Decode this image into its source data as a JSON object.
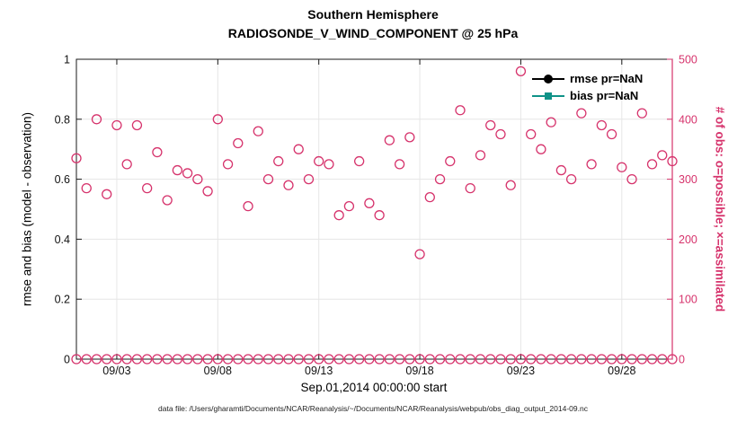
{
  "figure": {
    "title_line1": "Southern Hemisphere",
    "title_line2": "RADIOSONDE_V_WIND_COMPONENT @ 25 hPa",
    "x_label": "Sep.01,2014 00:00:00 start",
    "left_y_label": "rmse and bias (model - observation)",
    "right_y_label": "# of obs: o=possible; ×=assimilated",
    "footer": "data file: /Users/gharamti/Documents/NCAR/Reanalysis/~/Documents/NCAR/Reanalysis/webpub/obs_diag_output_2014-09.nc"
  },
  "legend": {
    "items": [
      {
        "label": "rmse pr=NaN",
        "color": "#000000",
        "marker": "filled-circle"
      },
      {
        "label": "bias pr=NaN",
        "color": "#0f9288",
        "marker": "filled-square"
      }
    ]
  },
  "colors": {
    "obs": "#d6336c",
    "teal": "#0f9288",
    "grid": "#e6e6e6",
    "axis": "#1a1a1a"
  },
  "chart_data": {
    "type": "scatter",
    "title": "Southern Hemisphere — RADIOSONDE_V_WIND_COMPONENT @ 25 hPa",
    "x_label": "Sep.01,2014 00:00:00 start",
    "x_range_days": [
      1,
      30.5
    ],
    "x_tick_days": [
      3,
      8,
      13,
      18,
      23,
      28
    ],
    "x_tick_labels": [
      "09/03",
      "09/08",
      "09/13",
      "09/18",
      "09/23",
      "09/28"
    ],
    "left_axis": {
      "label": "rmse and bias (model - observation)",
      "lim": [
        0,
        1
      ],
      "tick_values": [
        0,
        0.2,
        0.4,
        0.6,
        0.8,
        1
      ],
      "tick_labels": [
        "0",
        "0.2",
        "0.4",
        "0.6",
        "0.8",
        "1"
      ]
    },
    "right_axis": {
      "label": "# of obs: o=possible; ×=assimilated",
      "lim": [
        0,
        500
      ],
      "tick_values": [
        0,
        100,
        200,
        300,
        400,
        500
      ],
      "tick_labels": [
        "0",
        "100",
        "200",
        "300",
        "400",
        "500"
      ]
    },
    "grid": true,
    "legend_position": "top-right-inside",
    "series": [
      {
        "name": "possible_obs",
        "axis": "right",
        "marker": "open-circle",
        "color": "#d6336c",
        "x_days": [
          1,
          1.5,
          2,
          2.5,
          3,
          3.5,
          4,
          4.5,
          5,
          5.5,
          6,
          6.5,
          7,
          7.5,
          8,
          8.5,
          9,
          9.5,
          10,
          10.5,
          11,
          11.5,
          12,
          12.5,
          13,
          13.5,
          14,
          14.5,
          15,
          15.5,
          16,
          16.5,
          17,
          17.5,
          18,
          18.5,
          19,
          19.5,
          20,
          20.5,
          21,
          21.5,
          22,
          22.5,
          23,
          23.5,
          24,
          24.5,
          25,
          25.5,
          26,
          26.5,
          27,
          27.5,
          28,
          28.5,
          29,
          29.5,
          30,
          30.5
        ],
        "values": [
          335,
          285,
          400,
          275,
          390,
          325,
          390,
          285,
          345,
          265,
          315,
          310,
          300,
          280,
          400,
          325,
          360,
          255,
          380,
          300,
          330,
          290,
          350,
          300,
          330,
          325,
          240,
          255,
          330,
          260,
          240,
          365,
          325,
          370,
          175,
          270,
          300,
          330,
          415,
          285,
          340,
          390,
          375,
          290,
          480,
          375,
          350,
          395,
          315,
          300,
          410,
          325,
          390,
          375,
          320,
          300,
          410,
          325,
          340,
          330
        ]
      },
      {
        "name": "assimilated_obs",
        "axis": "right",
        "marker": "open-circle",
        "color": "#d6336c",
        "x_days": [
          1,
          1.5,
          2,
          2.5,
          3,
          3.5,
          4,
          4.5,
          5,
          5.5,
          6,
          6.5,
          7,
          7.5,
          8,
          8.5,
          9,
          9.5,
          10,
          10.5,
          11,
          11.5,
          12,
          12.5,
          13,
          13.5,
          14,
          14.5,
          15,
          15.5,
          16,
          16.5,
          17,
          17.5,
          18,
          18.5,
          19,
          19.5,
          20,
          20.5,
          21,
          21.5,
          22,
          22.5,
          23,
          23.5,
          24,
          24.5,
          25,
          25.5,
          26,
          26.5,
          27,
          27.5,
          28,
          28.5,
          29,
          29.5,
          30,
          30.5
        ],
        "values": [
          0,
          0,
          0,
          0,
          0,
          0,
          0,
          0,
          0,
          0,
          0,
          0,
          0,
          0,
          0,
          0,
          0,
          0,
          0,
          0,
          0,
          0,
          0,
          0,
          0,
          0,
          0,
          0,
          0,
          0,
          0,
          0,
          0,
          0,
          0,
          0,
          0,
          0,
          0,
          0,
          0,
          0,
          0,
          0,
          0,
          0,
          0,
          0,
          0,
          0,
          0,
          0,
          0,
          0,
          0,
          0,
          0,
          0,
          0,
          0
        ]
      },
      {
        "name": "rmse",
        "axis": "left",
        "marker": "filled-circle",
        "color": "#000000",
        "x_days": [],
        "values": [],
        "note": "pr=NaN — no data plotted"
      },
      {
        "name": "bias",
        "axis": "left",
        "marker": "filled-square",
        "color": "#0f9288",
        "x_days": [],
        "values": [],
        "note": "pr=NaN — no data plotted"
      }
    ]
  }
}
